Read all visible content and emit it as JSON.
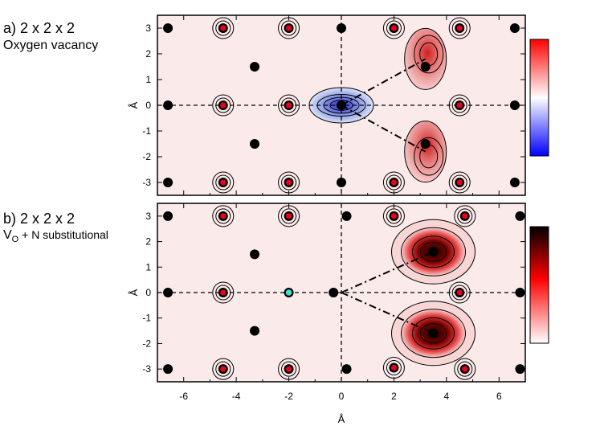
{
  "panels": {
    "a": {
      "label": "a) 2 x 2 x 2",
      "subtitle": "Oxygen vacancy"
    },
    "b": {
      "label": "b) 2 x 2 x 2",
      "subtitle_main": "V",
      "subtitle_sub": "O",
      "subtitle_rest": " + N substitutional"
    }
  },
  "colors": {
    "background_pink": "#fbe9e9",
    "oxygen_red": "#e8001c",
    "nitrogen_cyan": "#40e0d0",
    "atom_black": "#000000",
    "cbar_a": [
      "#0000ff",
      "#ffffff",
      "#ff0000"
    ],
    "cbar_b": [
      "#ffffff",
      "#ff0000",
      "#000000"
    ]
  },
  "chart_data": [
    {
      "type": "heatmap",
      "title": "a) 2 x 2 x 2 Oxygen vacancy",
      "xlabel": "Å",
      "ylabel": "Å",
      "xlim": [
        -7,
        7
      ],
      "ylim": [
        -3.5,
        3.5
      ],
      "xticks": [
        -6,
        -4,
        -2,
        0,
        2,
        4,
        6
      ],
      "yticks": [
        -3,
        -2,
        -1,
        0,
        1,
        2,
        3
      ],
      "colorbar": "blue-white-red",
      "atoms_black": [
        [
          -6.6,
          3
        ],
        [
          -4.5,
          3
        ],
        [
          -2,
          3
        ],
        [
          0,
          3
        ],
        [
          2,
          3
        ],
        [
          4.5,
          3
        ],
        [
          6.6,
          3
        ],
        [
          -3.3,
          1.5
        ],
        [
          -6.6,
          0
        ],
        [
          -4.5,
          0
        ],
        [
          -2,
          0
        ],
        [
          0,
          0
        ],
        [
          4.5,
          0
        ],
        [
          6.6,
          0
        ],
        [
          3.2,
          1.5
        ],
        [
          3.2,
          -1.5
        ],
        [
          -3.3,
          -1.5
        ],
        [
          -6.6,
          -3
        ],
        [
          -4.5,
          -3
        ],
        [
          -2,
          -3
        ],
        [
          0,
          -3
        ],
        [
          2,
          -3
        ],
        [
          4.5,
          -3
        ],
        [
          6.6,
          -3
        ]
      ],
      "atoms_oxygen": [
        [
          -4.5,
          3
        ],
        [
          -2,
          3
        ],
        [
          2,
          3
        ],
        [
          4.5,
          3
        ],
        [
          -4.5,
          0
        ],
        [
          -2,
          0
        ],
        [
          4.5,
          0
        ],
        [
          -4.5,
          -3
        ],
        [
          -2,
          -3
        ],
        [
          2,
          -3
        ],
        [
          4.5,
          -3
        ]
      ],
      "features": [
        {
          "kind": "negative_lobe",
          "x": 0,
          "y": 0
        },
        {
          "kind": "positive_lobe",
          "x": 3.2,
          "y": 1.8
        },
        {
          "kind": "positive_lobe",
          "x": 3.2,
          "y": -1.8
        }
      ]
    },
    {
      "type": "heatmap",
      "title": "b) 2 x 2 x 2 VO + N substitutional",
      "xlabel": "Å",
      "ylabel": "Å",
      "xlim": [
        -7,
        7
      ],
      "ylim": [
        -3.5,
        3.5
      ],
      "xticks": [
        -6,
        -4,
        -2,
        0,
        2,
        4,
        6
      ],
      "xticklabels": [
        "-6",
        "-4",
        "-2",
        "0",
        "2",
        "4",
        "6"
      ],
      "yticks": [
        -3,
        -2,
        -1,
        0,
        1,
        2,
        3
      ],
      "colorbar": "white-red-black",
      "atoms_black": [
        [
          -6.6,
          3
        ],
        [
          -4.5,
          3
        ],
        [
          -2,
          3
        ],
        [
          0.2,
          3
        ],
        [
          2,
          3
        ],
        [
          4.7,
          3
        ],
        [
          6.8,
          3
        ],
        [
          -3.3,
          1.5
        ],
        [
          -6.6,
          0
        ],
        [
          -4.5,
          0
        ],
        [
          -2,
          0
        ],
        [
          -0.3,
          0
        ],
        [
          4.5,
          0
        ],
        [
          6.8,
          0
        ],
        [
          3.5,
          1.6
        ],
        [
          3.5,
          -1.6
        ],
        [
          -3.3,
          -1.5
        ],
        [
          -6.6,
          -3
        ],
        [
          -4.5,
          -3
        ],
        [
          -2,
          -3
        ],
        [
          0.2,
          -3
        ],
        [
          2,
          -2.95
        ],
        [
          4.7,
          -3
        ],
        [
          6.8,
          -3
        ]
      ],
      "atoms_oxygen": [
        [
          -4.5,
          3
        ],
        [
          -2,
          3
        ],
        [
          2,
          3
        ],
        [
          4.7,
          3
        ],
        [
          -4.5,
          0
        ],
        [
          4.5,
          0
        ],
        [
          -4.5,
          -3
        ],
        [
          -2,
          -3
        ],
        [
          2,
          -2.95
        ],
        [
          4.7,
          -3
        ]
      ],
      "atoms_nitrogen": [
        [
          -2,
          0
        ]
      ],
      "features": [
        {
          "kind": "positive_cluster",
          "x": 3.5,
          "y": 1.6
        },
        {
          "kind": "positive_cluster",
          "x": 3.5,
          "y": -1.6
        }
      ]
    }
  ]
}
